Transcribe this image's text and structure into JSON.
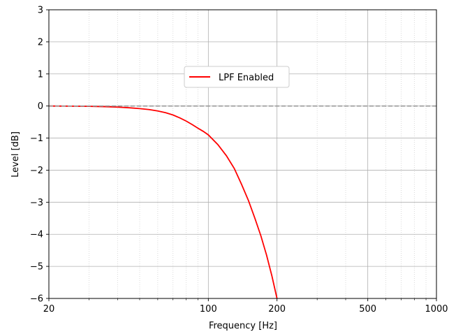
{
  "chart_data": {
    "type": "line",
    "title": "",
    "xlabel": "Frequency [Hz]",
    "ylabel": "Level [dB]",
    "xscale": "log",
    "xlim": [
      20,
      1000
    ],
    "ylim": [
      -6,
      3
    ],
    "xticks": [
      {
        "value": 20,
        "label": "20"
      },
      {
        "value": 100,
        "label": "100"
      },
      {
        "value": 200,
        "label": "200"
      },
      {
        "value": 500,
        "label": "500"
      },
      {
        "value": 1000,
        "label": "1000"
      }
    ],
    "yticks": [
      {
        "value": 3,
        "label": "3"
      },
      {
        "value": 2,
        "label": "2"
      },
      {
        "value": 1,
        "label": "1"
      },
      {
        "value": 0,
        "label": "0"
      },
      {
        "value": -1,
        "label": "−1"
      },
      {
        "value": -2,
        "label": "−2"
      },
      {
        "value": -3,
        "label": "−3"
      },
      {
        "value": -4,
        "label": "−4"
      },
      {
        "value": -5,
        "label": "−5"
      },
      {
        "value": -6,
        "label": "−6"
      }
    ],
    "grid": true,
    "minor_grid": true,
    "legend_position": "upper-center",
    "series": [
      {
        "name": "LPF Enabled",
        "color": "#ff0000",
        "style": "solid",
        "x": [
          20,
          25,
          30,
          35,
          40,
          45,
          50,
          55,
          60,
          65,
          70,
          75,
          80,
          85,
          90,
          95,
          100,
          110,
          120,
          130,
          140,
          150,
          160,
          170,
          180,
          190,
          200
        ],
        "y": [
          0.0,
          -0.005,
          -0.01,
          -0.02,
          -0.035,
          -0.055,
          -0.08,
          -0.11,
          -0.155,
          -0.21,
          -0.28,
          -0.37,
          -0.47,
          -0.58,
          -0.69,
          -0.79,
          -0.9,
          -1.2,
          -1.55,
          -1.95,
          -2.45,
          -2.95,
          -3.5,
          -4.05,
          -4.65,
          -5.3,
          -6.0
        ]
      },
      {
        "name": "",
        "color": "#999999",
        "style": "dashed",
        "x": [
          20,
          1000
        ],
        "y": [
          0,
          0
        ]
      }
    ]
  }
}
